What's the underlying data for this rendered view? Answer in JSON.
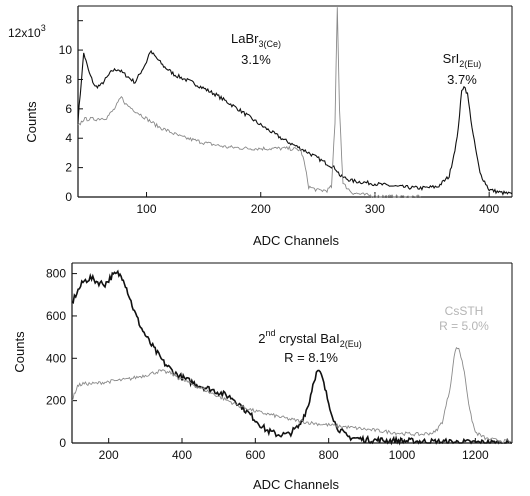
{
  "colors": {
    "primary": "#111111",
    "secondary": "#8a8a8a",
    "faint": "#b5b5b5"
  },
  "chart_data": [
    {
      "type": "line",
      "xlabel": "ADC Channels",
      "ylabel": "Counts",
      "xlim": [
        40,
        420
      ],
      "ylim": [
        0,
        13000
      ],
      "x_ticks": [
        100,
        200,
        300,
        400
      ],
      "y_ticks": [
        0,
        2000,
        4000,
        6000,
        8000,
        10000,
        12000
      ],
      "y_tick_labels": [
        "0",
        "2",
        "4",
        "6",
        "8",
        "10",
        ""
      ],
      "y_scale_label": {
        "base": "12x10",
        "exp": "3"
      },
      "annotations": [
        {
          "lines": [
            "LaBr",
            "3(Ce)",
            "3.1%"
          ],
          "x": 265,
          "y": 12000
        },
        {
          "lines": [
            "SrI",
            "2(Eu)",
            "3.7%"
          ],
          "x": 378,
          "y": 9000
        }
      ],
      "series": [
        {
          "style": "dark",
          "points": [
            [
              40,
              5200
            ],
            [
              45,
              9800
            ],
            [
              50,
              8400
            ],
            [
              55,
              7500
            ],
            [
              60,
              7600
            ],
            [
              70,
              8600
            ],
            [
              75,
              8700
            ],
            [
              80,
              8400
            ],
            [
              90,
              7800
            ],
            [
              95,
              8500
            ],
            [
              100,
              9200
            ],
            [
              103,
              9900
            ],
            [
              106,
              9700
            ],
            [
              115,
              8900
            ],
            [
              125,
              8300
            ],
            [
              140,
              7800
            ],
            [
              160,
              7000
            ],
            [
              180,
              6000
            ],
            [
              200,
              4900
            ],
            [
              220,
              3900
            ],
            [
              240,
              3100
            ],
            [
              255,
              2400
            ],
            [
              262,
              2100
            ],
            [
              266,
              1900
            ],
            [
              270,
              1400
            ],
            [
              280,
              1100
            ],
            [
              300,
              900
            ],
            [
              320,
              700
            ],
            [
              340,
              600
            ],
            [
              355,
              700
            ],
            [
              365,
              1400
            ],
            [
              372,
              4000
            ],
            [
              376,
              7200
            ],
            [
              378,
              7600
            ],
            [
              381,
              7000
            ],
            [
              386,
              4200
            ],
            [
              392,
              1600
            ],
            [
              400,
              500
            ],
            [
              410,
              300
            ],
            [
              420,
              200
            ]
          ]
        },
        {
          "style": "light",
          "points": [
            [
              40,
              4800
            ],
            [
              45,
              5300
            ],
            [
              55,
              5300
            ],
            [
              65,
              5400
            ],
            [
              72,
              6000
            ],
            [
              78,
              6800
            ],
            [
              82,
              6300
            ],
            [
              95,
              5600
            ],
            [
              110,
              4800
            ],
            [
              130,
              4100
            ],
            [
              150,
              3700
            ],
            [
              170,
              3400
            ],
            [
              190,
              3300
            ],
            [
              210,
              3300
            ],
            [
              225,
              3300
            ],
            [
              235,
              3200
            ],
            [
              238,
              2400
            ],
            [
              242,
              700
            ],
            [
              250,
              450
            ],
            [
              258,
              450
            ],
            [
              262,
              700
            ],
            [
              265,
              5000
            ],
            [
              267,
              13000
            ],
            [
              269,
              6000
            ],
            [
              272,
              900
            ],
            [
              280,
              300
            ],
            [
              290,
              150
            ],
            [
              300,
              80
            ],
            [
              310,
              30
            ],
            [
              320,
              10
            ],
            [
              330,
              5
            ],
            [
              340,
              0
            ]
          ]
        }
      ]
    },
    {
      "type": "line",
      "xlabel": "ADC Channels",
      "ylabel": "Counts",
      "xlim": [
        100,
        1300
      ],
      "ylim": [
        0,
        850
      ],
      "x_ticks": [
        200,
        400,
        600,
        800,
        1000,
        1200
      ],
      "y_ticks": [
        0,
        200,
        400,
        600,
        800
      ],
      "annotations": [
        {
          "lines": [
            "2",
            "nd",
            " crystal BaI",
            "2(Eu)",
            "R = 8.1%"
          ],
          "x": 790,
          "y": 520
        },
        {
          "lines": [
            "CsSTH",
            "R = 5.0%"
          ],
          "x": 1160,
          "y": 620,
          "faint": true
        }
      ],
      "series": [
        {
          "style": "dark",
          "points": [
            [
              100,
              660
            ],
            [
              110,
              700
            ],
            [
              130,
              760
            ],
            [
              150,
              780
            ],
            [
              170,
              760
            ],
            [
              190,
              750
            ],
            [
              210,
              790
            ],
            [
              225,
              800
            ],
            [
              240,
              780
            ],
            [
              255,
              700
            ],
            [
              270,
              620
            ],
            [
              290,
              540
            ],
            [
              310,
              480
            ],
            [
              330,
              430
            ],
            [
              350,
              380
            ],
            [
              380,
              330
            ],
            [
              410,
              300
            ],
            [
              450,
              270
            ],
            [
              500,
              240
            ],
            [
              540,
              210
            ],
            [
              570,
              160
            ],
            [
              600,
              110
            ],
            [
              630,
              60
            ],
            [
              660,
              40
            ],
            [
              690,
              40
            ],
            [
              720,
              80
            ],
            [
              745,
              180
            ],
            [
              760,
              300
            ],
            [
              770,
              340
            ],
            [
              780,
              320
            ],
            [
              800,
              190
            ],
            [
              820,
              80
            ],
            [
              850,
              30
            ],
            [
              900,
              15
            ],
            [
              1000,
              10
            ],
            [
              1100,
              5
            ],
            [
              1300,
              0
            ]
          ]
        },
        {
          "style": "light",
          "points": [
            [
              100,
              200
            ],
            [
              115,
              270
            ],
            [
              130,
              280
            ],
            [
              160,
              280
            ],
            [
              200,
              290
            ],
            [
              250,
              300
            ],
            [
              300,
              320
            ],
            [
              340,
              340
            ],
            [
              370,
              330
            ],
            [
              400,
              300
            ],
            [
              450,
              260
            ],
            [
              500,
              220
            ],
            [
              550,
              180
            ],
            [
              600,
              150
            ],
            [
              650,
              130
            ],
            [
              700,
              110
            ],
            [
              750,
              95
            ],
            [
              800,
              85
            ],
            [
              850,
              75
            ],
            [
              900,
              65
            ],
            [
              950,
              55
            ],
            [
              1000,
              45
            ],
            [
              1050,
              40
            ],
            [
              1090,
              50
            ],
            [
              1110,
              100
            ],
            [
              1130,
              250
            ],
            [
              1145,
              440
            ],
            [
              1155,
              450
            ],
            [
              1170,
              340
            ],
            [
              1185,
              150
            ],
            [
              1200,
              50
            ],
            [
              1230,
              20
            ],
            [
              1270,
              10
            ],
            [
              1300,
              5
            ]
          ]
        }
      ]
    }
  ]
}
